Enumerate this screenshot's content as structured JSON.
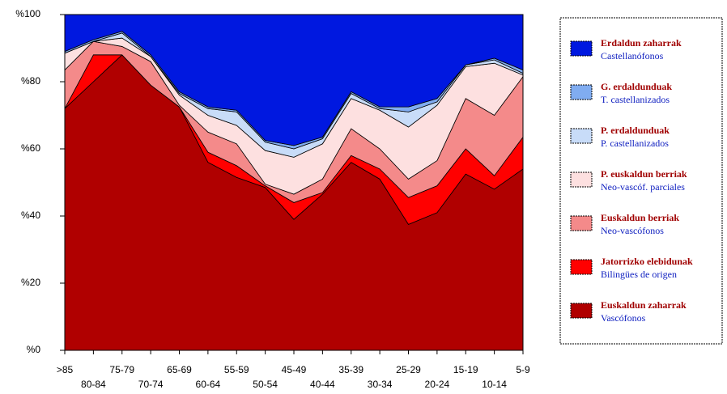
{
  "chart_data": {
    "type": "stacked_area",
    "categories": [
      ">85",
      "80-84",
      "75-79",
      "70-74",
      "65-69",
      "60-64",
      "55-59",
      "50-54",
      "45-49",
      "40-44",
      "35-39",
      "30-34",
      "25-29",
      "20-24",
      "15-19",
      "10-14",
      "5-9"
    ],
    "ylim": [
      0,
      100
    ],
    "yticks": [
      {
        "value": 0,
        "label": "%0"
      },
      {
        "value": 20,
        "label": "%20"
      },
      {
        "value": 40,
        "label": "%40"
      },
      {
        "value": 60,
        "label": "%60"
      },
      {
        "value": 80,
        "label": "%80"
      },
      {
        "value": 100,
        "label": "%100"
      }
    ],
    "series": [
      {
        "name": "Euskaldun zaharrak",
        "name_es": "Vascófonos",
        "color": "#b00000",
        "values": [
          72,
          80,
          88,
          79,
          72.5,
          56,
          51.5,
          48.5,
          39,
          46.5,
          56,
          51,
          37.5,
          41,
          52.5,
          48,
          54
        ]
      },
      {
        "name": "Jatorrizko elebidunak",
        "name_es": "Bilingües de origen",
        "color": "#ff0000",
        "values": [
          0,
          8,
          0,
          0,
          0,
          3,
          3.5,
          0.5,
          5,
          0.5,
          2,
          3,
          8,
          8,
          7.5,
          4,
          9.5
        ]
      },
      {
        "name": "Euskaldun berriak",
        "name_es": "Neo-vascófonos",
        "color": "#f48a8a",
        "values": [
          11.5,
          4,
          2.5,
          7,
          0.5,
          6,
          6.5,
          0.5,
          2.5,
          4,
          8,
          6,
          5.5,
          7.5,
          15,
          18,
          18
        ]
      },
      {
        "name": "P. euskaldun berriak",
        "name_es": "Neo-vascóf. parciales",
        "color": "#fde0e0",
        "values": [
          5,
          0,
          2.5,
          1.5,
          3,
          5,
          5.5,
          10,
          11,
          10.5,
          9,
          11.5,
          15.5,
          16.5,
          9.5,
          15.5,
          0.5
        ]
      },
      {
        "name": "P. erdaldunduak",
        "name_es": "P. castellanizados",
        "color": "#c8dcf8",
        "values": [
          0,
          0,
          1.5,
          0,
          0.5,
          2,
          4,
          2.5,
          2.5,
          1.5,
          1.5,
          0.5,
          4.5,
          1,
          0.5,
          1,
          0.5
        ]
      },
      {
        "name": "G. erdaldunduak",
        "name_es": "T. castellanizados",
        "color": "#80acf0",
        "values": [
          0.5,
          0.5,
          0.5,
          0.5,
          0.5,
          0.5,
          0.5,
          0.5,
          1,
          0.5,
          0.5,
          0.5,
          1.5,
          1,
          0,
          0.5,
          1
        ]
      },
      {
        "name": "Erdaldun zaharrak",
        "name_es": "Castellanófonos",
        "color": "#0018e0",
        "values": [
          11,
          7.5,
          5,
          12,
          23,
          27.5,
          28.5,
          37.5,
          39,
          36.5,
          23,
          27.5,
          27.5,
          25,
          15,
          13,
          16.5
        ]
      }
    ]
  }
}
